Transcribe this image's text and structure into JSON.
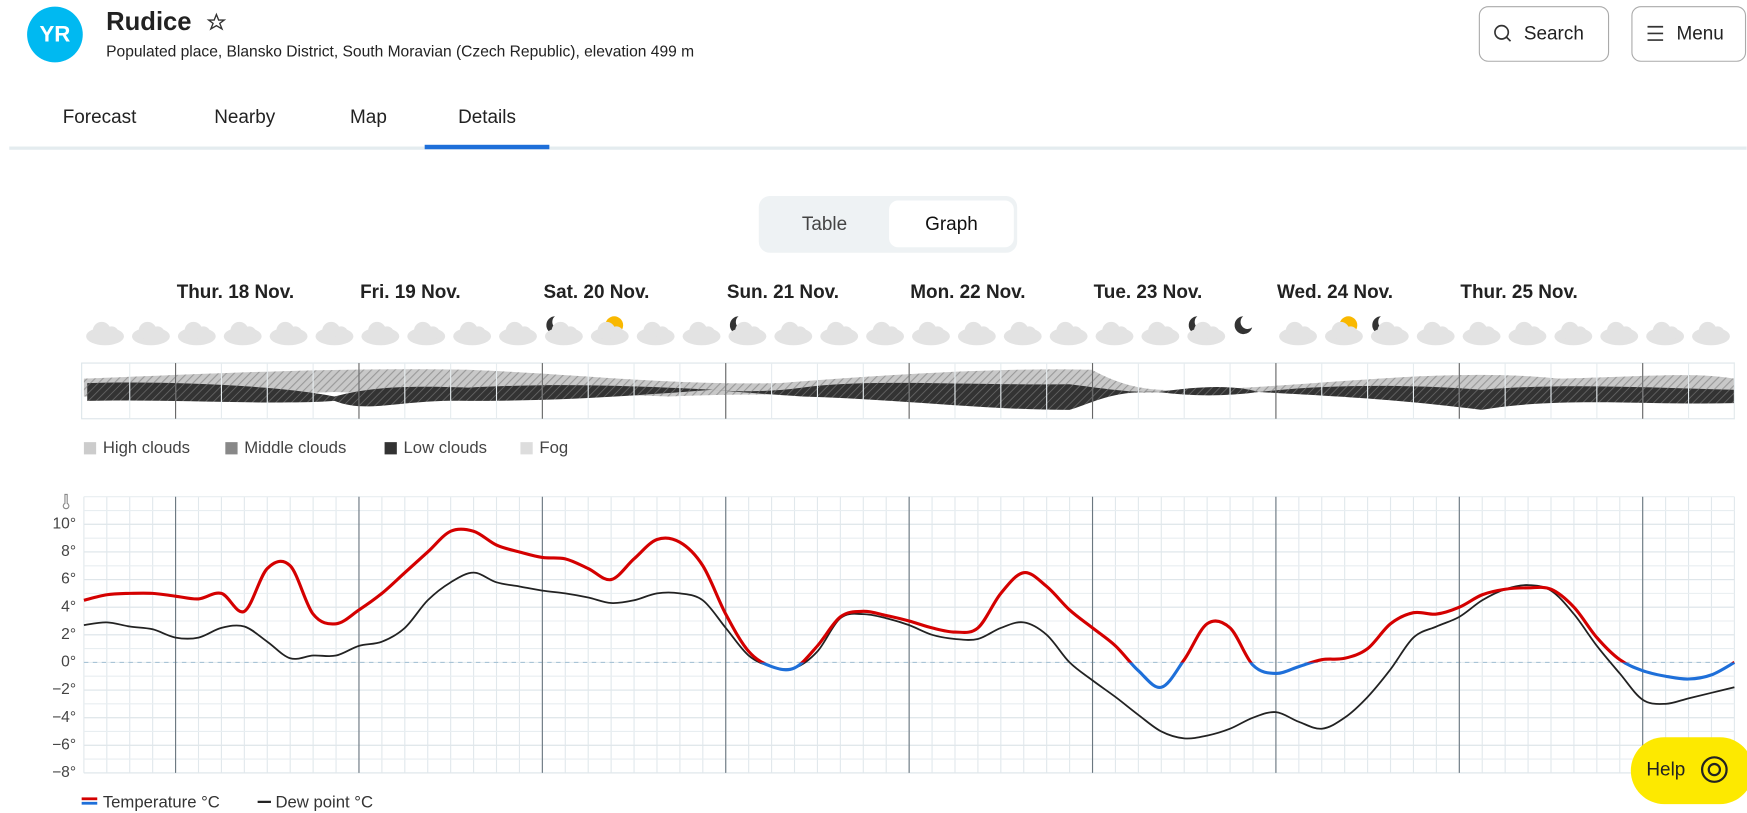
{
  "header": {
    "title": "Rudice",
    "subtitle": "Populated place, Blansko District, South Moravian (Czech Republic), elevation 499 m",
    "buttons": [
      "Search",
      "Menu"
    ]
  },
  "tabs": {
    "items": [
      "Forecast",
      "Nearby",
      "Map",
      "Details"
    ],
    "active": 3
  },
  "view_toggle": {
    "items": [
      "Table",
      "Graph"
    ],
    "active": 1
  },
  "days": [
    "Thur. 18 Nov.",
    "Fri. 19 Nov.",
    "Sat. 20 Nov.",
    "Sun. 21 Nov.",
    "Mon. 22 Nov.",
    "Tue. 23 Nov.",
    "Wed. 24 Nov.",
    "Thur. 25 Nov."
  ],
  "cloud_legend": [
    "High clouds",
    "Middle clouds",
    "Low clouds",
    "Fog"
  ],
  "chart_data": {
    "type": "line",
    "ylim": [
      -8,
      12
    ],
    "yticks": [
      {
        "value": -8,
        "label": "−8°"
      },
      {
        "value": -6,
        "label": "−6°"
      },
      {
        "value": -4,
        "label": "−4°"
      },
      {
        "value": -2,
        "label": "−2°"
      },
      {
        "value": 0,
        "label": "0°"
      },
      {
        "value": 2,
        "label": "2°"
      },
      {
        "value": 4,
        "label": "4°"
      },
      {
        "value": 6,
        "label": "6°"
      },
      {
        "value": 8,
        "label": "8°"
      },
      {
        "value": 10,
        "label": "10°"
      }
    ],
    "grid": true,
    "series": [
      {
        "name": "Temperature °C",
        "color": "#d40000",
        "negative_color": "#1e6fd9",
        "values": [
          4.5,
          4.9,
          5.0,
          5.0,
          4.8,
          4.6,
          5.0,
          3.7,
          6.8,
          7.0,
          3.5,
          2.8,
          3.8,
          5.0,
          6.5,
          8.0,
          9.5,
          9.5,
          8.5,
          8.0,
          7.6,
          7.5,
          6.8,
          6.0,
          7.5,
          8.9,
          8.7,
          7.0,
          3.5,
          0.8,
          -0.3,
          -0.4,
          1.2,
          3.3,
          3.7,
          3.4,
          3.0,
          2.5,
          2.2,
          2.5,
          5.0,
          6.5,
          5.5,
          3.8,
          2.5,
          1.2,
          -0.6,
          -1.8,
          0.2,
          2.8,
          2.5,
          -0.2,
          -0.8,
          -0.3,
          0.2,
          0.3,
          1.0,
          2.8,
          3.6,
          3.5,
          4.0,
          4.9,
          5.3,
          5.4,
          5.3,
          4.0,
          1.8,
          0.2,
          -0.6,
          -1.0,
          -1.2,
          -0.9,
          0.0
        ]
      },
      {
        "name": "Dew point °C",
        "color": "#222222",
        "values": [
          2.7,
          2.9,
          2.6,
          2.4,
          1.8,
          1.8,
          2.5,
          2.6,
          1.5,
          0.3,
          0.5,
          0.5,
          1.2,
          1.5,
          2.5,
          4.5,
          5.8,
          6.5,
          5.8,
          5.5,
          5.2,
          5.0,
          4.7,
          4.3,
          4.5,
          5.0,
          5.0,
          4.5,
          2.5,
          0.5,
          -0.3,
          -0.4,
          0.8,
          3.2,
          3.5,
          3.2,
          2.7,
          2.0,
          1.7,
          1.7,
          2.5,
          2.9,
          2.0,
          0.0,
          -1.3,
          -2.5,
          -3.8,
          -5.0,
          -5.5,
          -5.3,
          -4.8,
          -4.0,
          -3.6,
          -4.3,
          -4.8,
          -4.0,
          -2.5,
          -0.5,
          1.8,
          2.6,
          3.3,
          4.5,
          5.3,
          5.6,
          5.2,
          3.5,
          1.2,
          -0.8,
          -2.7,
          -3.0,
          -2.6,
          -2.2,
          -1.8
        ]
      }
    ]
  },
  "help": "Help"
}
